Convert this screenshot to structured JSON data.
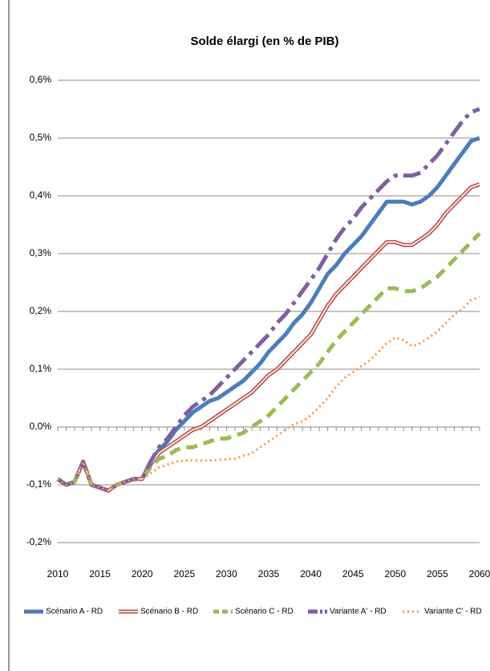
{
  "chart_data": {
    "type": "line",
    "title": "Solde élargi (en % de PIB)",
    "x": [
      2010,
      2011,
      2012,
      2013,
      2014,
      2015,
      2016,
      2017,
      2018,
      2019,
      2020,
      2021,
      2022,
      2023,
      2024,
      2025,
      2026,
      2027,
      2028,
      2029,
      2030,
      2031,
      2032,
      2033,
      2034,
      2035,
      2036,
      2037,
      2038,
      2039,
      2040,
      2041,
      2042,
      2043,
      2044,
      2045,
      2046,
      2047,
      2048,
      2049,
      2050,
      2051,
      2052,
      2053,
      2054,
      2055,
      2056,
      2057,
      2058,
      2059,
      2060
    ],
    "series": [
      {
        "name": "Scénario A - RD",
        "color": "#4a7ebb",
        "line_style": "solid",
        "values": [
          -0.09,
          -0.1,
          -0.095,
          -0.06,
          -0.1,
          -0.105,
          -0.11,
          -0.1,
          -0.095,
          -0.09,
          -0.09,
          -0.06,
          -0.04,
          -0.025,
          -0.005,
          0.01,
          0.025,
          0.035,
          0.045,
          0.05,
          0.06,
          0.07,
          0.08,
          0.095,
          0.11,
          0.13,
          0.145,
          0.16,
          0.18,
          0.195,
          0.215,
          0.24,
          0.265,
          0.28,
          0.3,
          0.315,
          0.33,
          0.35,
          0.37,
          0.39,
          0.39,
          0.39,
          0.385,
          0.39,
          0.4,
          0.415,
          0.435,
          0.455,
          0.475,
          0.495,
          0.5
        ]
      },
      {
        "name": "Scénario B - RD",
        "color": "#c0504d",
        "line_style": "double",
        "values": [
          -0.09,
          -0.1,
          -0.095,
          -0.06,
          -0.1,
          -0.105,
          -0.11,
          -0.1,
          -0.095,
          -0.09,
          -0.09,
          -0.065,
          -0.045,
          -0.035,
          -0.025,
          -0.015,
          -0.005,
          0.0,
          0.01,
          0.02,
          0.03,
          0.04,
          0.05,
          0.06,
          0.075,
          0.09,
          0.1,
          0.115,
          0.13,
          0.145,
          0.16,
          0.185,
          0.21,
          0.23,
          0.245,
          0.26,
          0.275,
          0.29,
          0.305,
          0.32,
          0.32,
          0.315,
          0.315,
          0.325,
          0.335,
          0.35,
          0.37,
          0.385,
          0.4,
          0.415,
          0.42
        ]
      },
      {
        "name": "Scénario C - RD",
        "color": "#9bbb59",
        "line_style": "dashed",
        "values": [
          -0.09,
          -0.1,
          -0.095,
          -0.06,
          -0.1,
          -0.105,
          -0.11,
          -0.1,
          -0.095,
          -0.09,
          -0.09,
          -0.07,
          -0.055,
          -0.05,
          -0.04,
          -0.035,
          -0.035,
          -0.03,
          -0.025,
          -0.02,
          -0.02,
          -0.015,
          -0.01,
          0.0,
          0.01,
          0.02,
          0.035,
          0.05,
          0.065,
          0.08,
          0.095,
          0.11,
          0.13,
          0.15,
          0.165,
          0.18,
          0.195,
          0.21,
          0.225,
          0.24,
          0.24,
          0.235,
          0.235,
          0.24,
          0.25,
          0.26,
          0.275,
          0.29,
          0.305,
          0.32,
          0.335
        ]
      },
      {
        "name": "Variante A' - RD",
        "color": "#7f5fa0",
        "line_style": "dashdot",
        "values": [
          -0.09,
          -0.1,
          -0.095,
          -0.06,
          -0.1,
          -0.105,
          -0.11,
          -0.1,
          -0.095,
          -0.09,
          -0.09,
          -0.06,
          -0.035,
          -0.02,
          0.0,
          0.02,
          0.035,
          0.045,
          0.055,
          0.07,
          0.085,
          0.1,
          0.115,
          0.13,
          0.145,
          0.16,
          0.18,
          0.195,
          0.215,
          0.235,
          0.255,
          0.275,
          0.3,
          0.325,
          0.345,
          0.36,
          0.38,
          0.395,
          0.41,
          0.425,
          0.435,
          0.435,
          0.435,
          0.44,
          0.455,
          0.47,
          0.49,
          0.51,
          0.53,
          0.545,
          0.55
        ]
      },
      {
        "name": "Variante C' - RD",
        "color": "#f79646",
        "line_style": "dotted",
        "values": [
          -0.09,
          -0.1,
          -0.095,
          -0.06,
          -0.1,
          -0.105,
          -0.11,
          -0.1,
          -0.095,
          -0.09,
          -0.09,
          -0.08,
          -0.07,
          -0.065,
          -0.06,
          -0.058,
          -0.058,
          -0.058,
          -0.058,
          -0.057,
          -0.056,
          -0.055,
          -0.05,
          -0.045,
          -0.035,
          -0.025,
          -0.015,
          -0.005,
          0.005,
          0.01,
          0.02,
          0.035,
          0.05,
          0.07,
          0.085,
          0.095,
          0.105,
          0.115,
          0.13,
          0.145,
          0.155,
          0.15,
          0.14,
          0.145,
          0.155,
          0.165,
          0.18,
          0.195,
          0.205,
          0.22,
          0.225
        ]
      }
    ],
    "xlim": [
      2010,
      2060
    ],
    "xticks": [
      2010,
      2015,
      2020,
      2025,
      2030,
      2035,
      2040,
      2045,
      2050,
      2055,
      2060
    ],
    "ylim": [
      -0.2,
      0.6
    ],
    "yticks": [
      {
        "value": -0.2,
        "label": "-0,2%"
      },
      {
        "value": -0.1,
        "label": "-0,1%"
      },
      {
        "value": 0.0,
        "label": "0,0%"
      },
      {
        "value": 0.1,
        "label": "0,1%"
      },
      {
        "value": 0.2,
        "label": "0,2%"
      },
      {
        "value": 0.3,
        "label": "0,3%"
      },
      {
        "value": 0.4,
        "label": "0,4%"
      },
      {
        "value": 0.5,
        "label": "0,5%"
      },
      {
        "value": 0.6,
        "label": "0,6%"
      }
    ],
    "grid": true,
    "legend": "bottom"
  }
}
